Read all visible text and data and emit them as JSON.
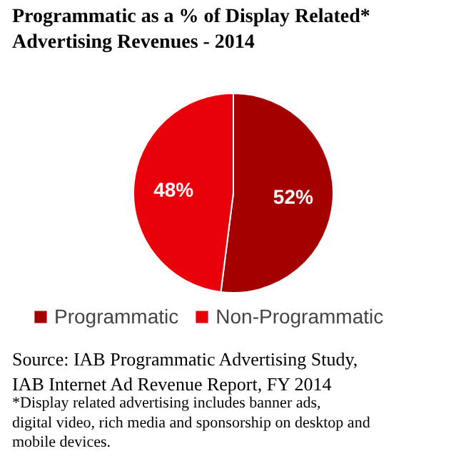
{
  "chart_data": {
    "type": "pie",
    "title": "Programmatic as a % of  Display Related* Advertising Revenues - 2014",
    "categories": [
      "Programmatic",
      "Non-Programmatic"
    ],
    "values": [
      52,
      48
    ],
    "value_labels": [
      "52%",
      "48%"
    ],
    "colors": [
      "#a50000",
      "#e8000b"
    ],
    "legend": "bottom",
    "annotations": [
      "Source: IAB Programmatic Advertising Study, IAB Internet Ad Revenue Report, FY 2014",
      "*Display related advertising includes banner ads, digital video, rich media and sponsorship on desktop and mobile devices."
    ]
  }
}
